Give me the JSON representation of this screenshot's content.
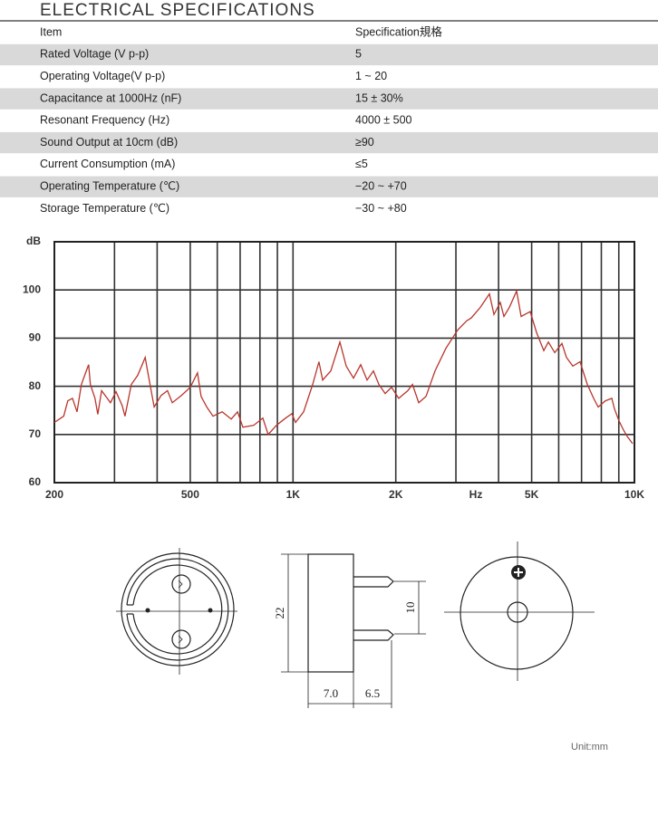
{
  "header": {
    "title": "ELECTRICAL SPECIFICATIONS"
  },
  "table": {
    "columns": [
      "Item",
      "Specification規格"
    ],
    "rows": [
      [
        "Rated Voltage (V p-p)",
        "5"
      ],
      [
        "Operating Voltage(V p-p)",
        "1 ~ 20"
      ],
      [
        "Capacitance  at  1000Hz (nF)",
        "15 ± 30%"
      ],
      [
        "Resonant Frequency (Hz)",
        "4000 ± 500"
      ],
      [
        "Sound Output  at  10cm (dB)",
        "≥90"
      ],
      [
        "Current Consumption (mA)",
        "≤5"
      ],
      [
        "Operating Temperature (℃)",
        "−20 ~ +70"
      ],
      [
        "Storage Temperature (℃)",
        "−30 ~ +80"
      ]
    ]
  },
  "chart_data": {
    "type": "line",
    "x_unit": "Hz",
    "y_unit": "dB",
    "log_x": true,
    "grid": true,
    "xlim": [
      200,
      10000
    ],
    "ylim": [
      60,
      110
    ],
    "xticks": [
      200,
      500,
      {
        "value": 1000,
        "label": "1K"
      },
      {
        "value": 2000,
        "label": "2K"
      },
      {
        "value": 5000,
        "label": "5K"
      },
      {
        "value": 10000,
        "label": "10K"
      }
    ],
    "xgrid": [
      300,
      400,
      600,
      700,
      800,
      900,
      3000,
      4000,
      6000,
      7000,
      8000,
      9000
    ],
    "yticks": [
      60,
      70,
      80,
      90,
      100
    ],
    "color": "#b8352c",
    "x": [
      200,
      213,
      219,
      226,
      233,
      240,
      248,
      252,
      255,
      263,
      268,
      275,
      283,
      292,
      303,
      316,
      322,
      336,
      351,
      369,
      375,
      392,
      411,
      429,
      443,
      471,
      500,
      525,
      538,
      559,
      583,
      620,
      659,
      688,
      713,
      767,
      816,
      846,
      894,
      951,
      992,
      1017,
      1074,
      1142,
      1191,
      1221,
      1290,
      1372,
      1432,
      1503,
      1579,
      1648,
      1720,
      1784,
      1862,
      1943,
      2040,
      2170,
      2238,
      2335,
      2452,
      2606,
      2805,
      3037,
      3228,
      3328,
      3538,
      3760,
      3878,
      4048,
      4148,
      4302,
      4518,
      4658,
      4952,
      5170,
      5428,
      5596,
      5842,
      6134,
      6324,
      6600,
      6930,
      7276,
      7594,
      7830,
      8222,
      8584,
      8742,
      9014,
      9292,
      9522,
      9878
    ],
    "values": [
      72.5,
      73.8,
      77.0,
      77.5,
      74.7,
      80.4,
      83.2,
      84.5,
      80.4,
      77.5,
      74.2,
      79.1,
      77.9,
      76.6,
      78.9,
      76.0,
      73.8,
      80.4,
      82.3,
      86.0,
      83.2,
      75.7,
      78.1,
      79.1,
      76.6,
      78.1,
      79.8,
      82.8,
      77.9,
      75.7,
      73.8,
      74.7,
      73.2,
      74.7,
      71.5,
      71.9,
      73.4,
      70.0,
      71.9,
      73.4,
      74.3,
      72.5,
      74.7,
      80.4,
      85.1,
      81.3,
      83.2,
      89.2,
      84.2,
      81.7,
      84.5,
      81.3,
      83.2,
      80.4,
      78.5,
      79.8,
      77.5,
      79.1,
      80.4,
      76.6,
      77.9,
      83.2,
      87.9,
      91.7,
      93.6,
      94.2,
      96.4,
      99.2,
      94.9,
      97.4,
      94.5,
      96.4,
      99.8,
      94.5,
      95.5,
      91.1,
      87.4,
      89.2,
      87.0,
      88.9,
      86.0,
      84.2,
      85.1,
      80.4,
      77.5,
      75.7,
      77.0,
      77.5,
      75.3,
      72.8,
      70.9,
      69.6,
      68.1
    ]
  },
  "drawing": {
    "dimensions": [
      "22",
      "10",
      "7.0",
      "6.5"
    ],
    "unit": "Unit:mm"
  }
}
